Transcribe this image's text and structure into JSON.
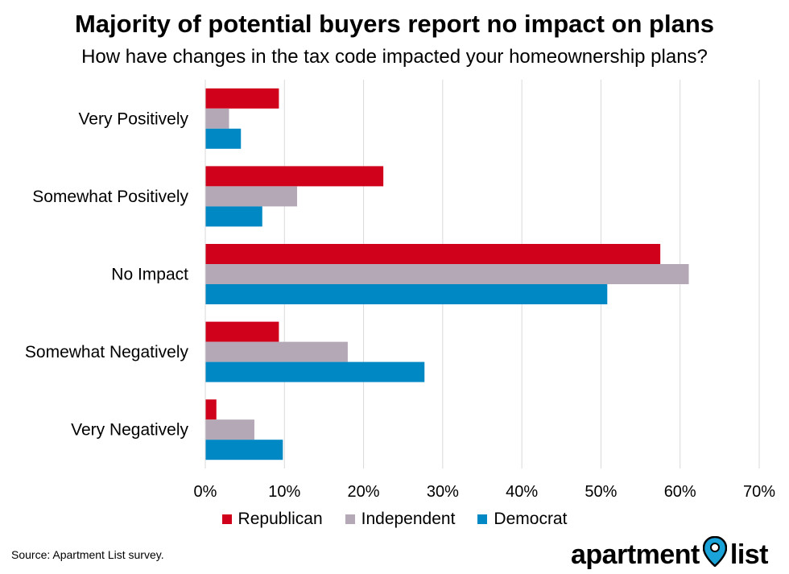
{
  "title": "Majority of potential buyers report no impact on plans",
  "subtitle": "How have changes in the tax code impacted your homeownership plans?",
  "source": "Source: Apartment List survey.",
  "logo": {
    "word1": "apartment",
    "word2": "list",
    "icon": "map-pin-icon"
  },
  "chart_data": {
    "type": "bar",
    "orientation": "horizontal",
    "categories": [
      "Very Positively",
      "Somewhat Positively",
      "No Impact",
      "Somewhat Negatively",
      "Very Negatively"
    ],
    "series": [
      {
        "name": "Republican",
        "color": "#d0021b",
        "values": [
          9.3,
          22.5,
          57.5,
          9.3,
          1.4
        ]
      },
      {
        "name": "Independent",
        "color": "#b4a7b6",
        "values": [
          3.0,
          11.6,
          61.1,
          18.0,
          6.2
        ]
      },
      {
        "name": "Democrat",
        "color": "#0088c4",
        "values": [
          4.5,
          7.2,
          50.8,
          27.7,
          9.8
        ]
      }
    ],
    "xlim": [
      0,
      70
    ],
    "xticks": [
      "0%",
      "10%",
      "20%",
      "30%",
      "40%",
      "50%",
      "60%",
      "70%"
    ],
    "grid": true,
    "legend_position": "bottom"
  }
}
